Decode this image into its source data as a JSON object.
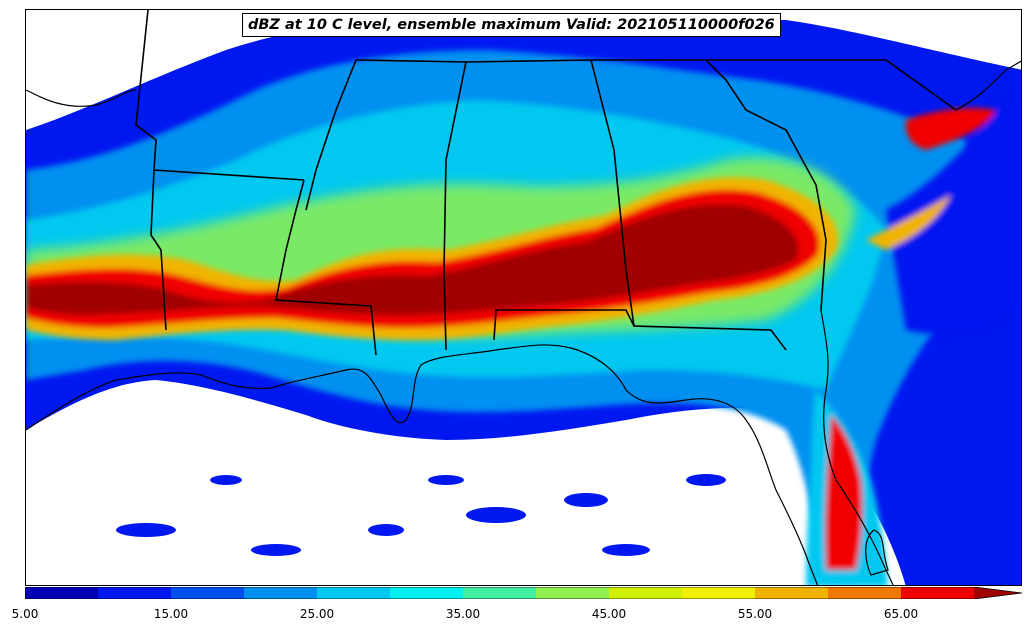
{
  "title": "dBZ at 10 C level, ensemble maximum Valid: 202105110000f026",
  "colorbar": {
    "levels": [
      5,
      10,
      15,
      20,
      25,
      30,
      35,
      40,
      45,
      50,
      55,
      60,
      65,
      70
    ],
    "colors": [
      "#0000b4",
      "#0018f0",
      "#0050f0",
      "#0090f0",
      "#00c8f0",
      "#00f0f0",
      "#40f0a0",
      "#90f050",
      "#d0f000",
      "#f0f000",
      "#f0b400",
      "#f07800",
      "#f00000",
      "#a00000"
    ],
    "extend": "max",
    "tick_labels": [
      "5.00",
      "15.00",
      "25.00",
      "35.00",
      "45.00",
      "55.00",
      "65.00"
    ]
  },
  "colors": {
    "background": "#ffffff",
    "boundaries": "#000000"
  }
}
